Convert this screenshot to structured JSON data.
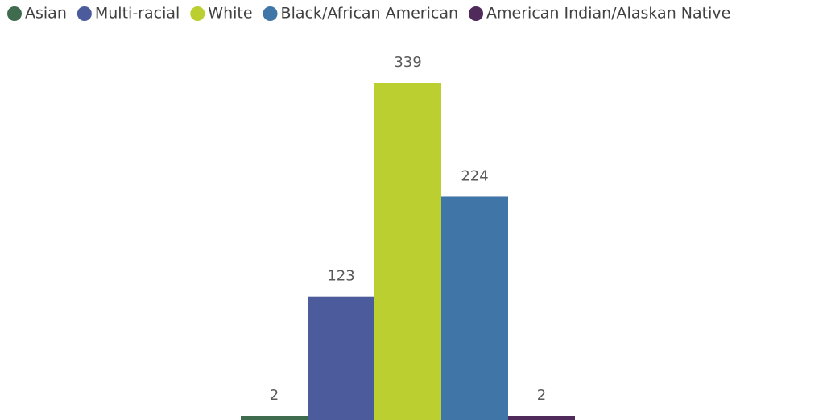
{
  "chart_data": {
    "type": "bar",
    "series": [
      {
        "name": "Asian",
        "color": "#3f6b4e",
        "values": [
          2
        ]
      },
      {
        "name": "Multi-racial",
        "color": "#4b5b9b",
        "values": [
          123
        ]
      },
      {
        "name": "White",
        "color": "#bccf31",
        "values": [
          339
        ]
      },
      {
        "name": "Black/African American",
        "color": "#3f75a7",
        "values": [
          224
        ]
      },
      {
        "name": "American Indian/Alaskan Native",
        "color": "#4f2a5a",
        "values": [
          2
        ]
      }
    ],
    "legend": "top"
  }
}
